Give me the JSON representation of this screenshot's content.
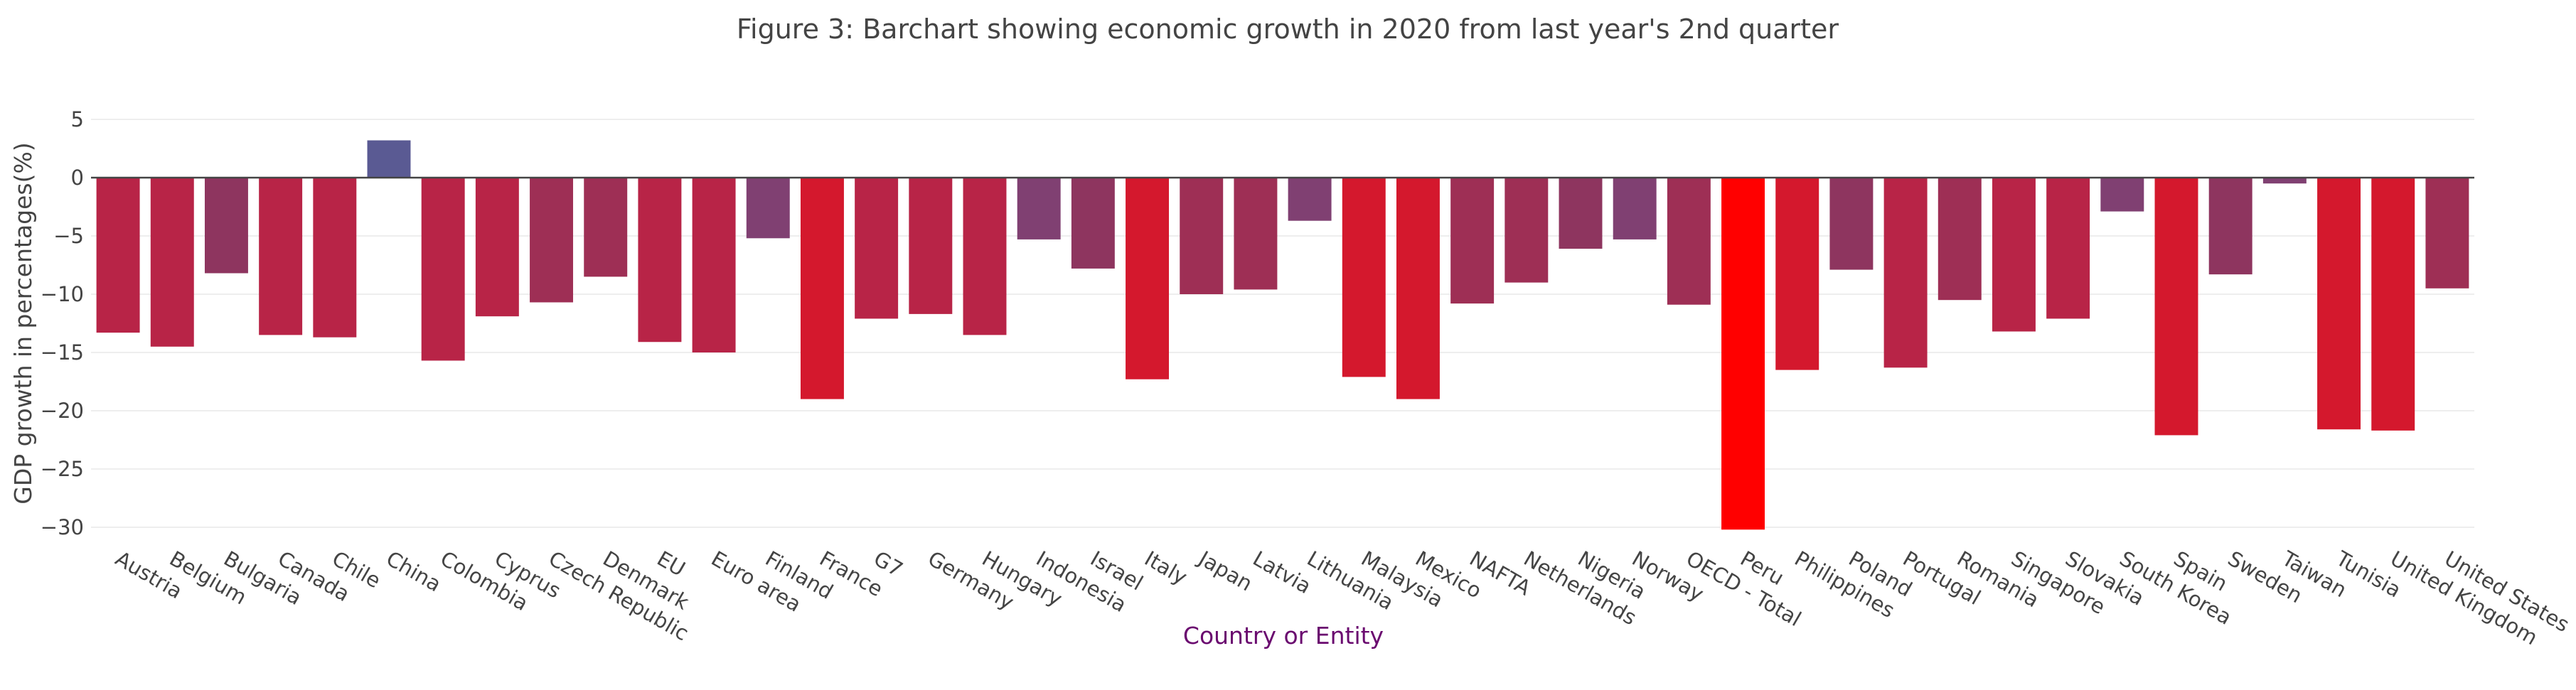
{
  "chart_data": {
    "type": "bar",
    "title": "Figure 3: Barchart showing economic growth in 2020 from last year's 2nd quarter",
    "xlabel": "Country or Entity",
    "ylabel": "GDP growth in percentages(%)",
    "ylim": [
      -32,
      6
    ],
    "yticks": [
      5,
      0,
      -5,
      -10,
      -15,
      -20,
      -25,
      -30
    ],
    "grid": true,
    "legend": "none",
    "colors": {
      "positive": "#5a5a93",
      "min": "#ff0000",
      "strong": "#d4182d",
      "mid": "#b82447",
      "weak": "#8e355f",
      "zeroline": "#444444",
      "gridline": "#eeeeee",
      "xlabel": "#6a0a6f"
    },
    "categories": [
      "Austria",
      "Belgium",
      "Bulgaria",
      "Canada",
      "Chile",
      "China",
      "Colombia",
      "Cyprus",
      "Czech Republic",
      "Denmark",
      "EU",
      "Euro area",
      "Finland",
      "France",
      "G7",
      "Germany",
      "Hungary",
      "Indonesia",
      "Israel",
      "Italy",
      "Japan",
      "Latvia",
      "Lithuania",
      "Malaysia",
      "Mexico",
      "NAFTA",
      "Netherlands",
      "Nigeria",
      "Norway",
      "OECD - Total",
      "Peru",
      "Philippines",
      "Poland",
      "Portugal",
      "Romania",
      "Singapore",
      "Slovakia",
      "South Korea",
      "Spain",
      "Sweden",
      "Taiwan",
      "Tunisia",
      "United Kingdom",
      "United States"
    ],
    "values": [
      -13.3,
      -14.5,
      -8.2,
      -13.5,
      -13.7,
      3.2,
      -15.7,
      -11.9,
      -10.7,
      -8.5,
      -14.1,
      -15.0,
      -5.2,
      -19.0,
      -12.1,
      -11.7,
      -13.5,
      -5.3,
      -7.8,
      -17.3,
      -10.0,
      -9.6,
      -3.7,
      -17.1,
      -19.0,
      -10.8,
      -9.0,
      -6.1,
      -5.3,
      -10.9,
      -30.2,
      -16.5,
      -7.9,
      -16.3,
      -10.5,
      -13.2,
      -12.1,
      -2.9,
      -22.1,
      -8.3,
      -0.5,
      -21.6,
      -21.7,
      -9.5
    ]
  }
}
